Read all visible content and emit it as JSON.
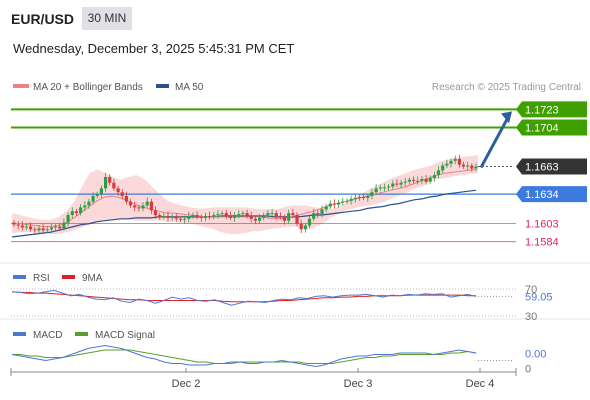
{
  "header": {
    "pair": "EUR/USD",
    "timeframe": "30 MIN",
    "datetime": "Wednesday, December 3, 2025 5:45:31 PM CET"
  },
  "colors": {
    "green": "#3fa000",
    "blue": "#3d7ae0",
    "red": "#e0245e",
    "bull": "#2e9e46",
    "bear": "#d63a3a",
    "band": "#f9c7c9",
    "ma20": "#f08080",
    "ma50": "#2c4f8f",
    "arrow": "#2f5e9e",
    "dark": "#333333"
  },
  "chart_data": [
    {
      "type": "line",
      "subtype": "candlestick",
      "legend": [
        {
          "name": "MA 20 + Bollinger Bands",
          "color": "#f08080"
        },
        {
          "name": "MA 50",
          "color": "#2c4f8f"
        }
      ],
      "source": "Research © 2025 Trading Central",
      "y_range": [
        1.157,
        1.1735
      ],
      "x_ticks": [
        "Dec 2",
        "Dec 3",
        "Dec 4"
      ],
      "levels": [
        {
          "value": 1.1723,
          "label": "1.1723",
          "color": "#3fa000",
          "kind": "resistance"
        },
        {
          "value": 1.1704,
          "label": "1.1704",
          "color": "#3fa000",
          "kind": "resistance"
        },
        {
          "value": 1.1663,
          "label": "1.1663",
          "color": "#333333",
          "kind": "last"
        },
        {
          "value": 1.1634,
          "label": "1.1634",
          "color": "#3d7ae0",
          "kind": "pivot"
        },
        {
          "value": 1.1603,
          "label": "1.1603",
          "color": "#e0245e",
          "kind": "support"
        },
        {
          "value": 1.1584,
          "label": "1.1584",
          "color": "#e0245e",
          "kind": "support"
        }
      ],
      "close_series": [
        1.1602,
        1.1601,
        1.1599,
        1.16,
        1.1597,
        1.1596,
        1.1598,
        1.1596,
        1.1597,
        1.1599,
        1.16,
        1.1598,
        1.1604,
        1.1612,
        1.1616,
        1.1614,
        1.162,
        1.1622,
        1.1626,
        1.1632,
        1.1634,
        1.164,
        1.1652,
        1.1646,
        1.164,
        1.1636,
        1.1632,
        1.1626,
        1.1622,
        1.162,
        1.1619,
        1.1622,
        1.1626,
        1.1617,
        1.1612,
        1.161,
        1.1611,
        1.1609,
        1.161,
        1.1608,
        1.1607,
        1.1608,
        1.1611,
        1.1612,
        1.161,
        1.1609,
        1.1611,
        1.161,
        1.1612,
        1.1613,
        1.1614,
        1.1611,
        1.1609,
        1.1612,
        1.1613,
        1.1614,
        1.1611,
        1.1608,
        1.1606,
        1.1609,
        1.1612,
        1.1614,
        1.1614,
        1.1611,
        1.161,
        1.1606,
        1.1614,
        1.1612,
        1.1603,
        1.1597,
        1.1601,
        1.1608,
        1.1614,
        1.1613,
        1.1618,
        1.1621,
        1.1624,
        1.1623,
        1.1625,
        1.1626,
        1.1627,
        1.1629,
        1.163,
        1.1631,
        1.163,
        1.1632,
        1.1636,
        1.164,
        1.1641,
        1.1641,
        1.1642,
        1.1645,
        1.1644,
        1.1646,
        1.1647,
        1.1649,
        1.1648,
        1.1648,
        1.165,
        1.1647,
        1.1651,
        1.1654,
        1.1659,
        1.1664,
        1.1666,
        1.1669,
        1.1671,
        1.1665,
        1.1663,
        1.1664,
        1.1661,
        1.1663
      ],
      "bb_upper": [
        1.1614,
        1.1612,
        1.161,
        1.1608,
        1.1607,
        1.1607,
        1.161,
        1.1616,
        1.1626,
        1.1642,
        1.1656,
        1.166,
        1.1656,
        1.1652,
        1.1649,
        1.1652,
        1.1654,
        1.165,
        1.1642,
        1.1634,
        1.1627,
        1.1624,
        1.1622,
        1.162,
        1.1619,
        1.1619,
        1.162,
        1.162,
        1.162,
        1.162,
        1.162,
        1.1619,
        1.1618,
        1.1618,
        1.1618,
        1.162,
        1.1622,
        1.1622,
        1.1622,
        1.162,
        1.1619,
        1.1618,
        1.162,
        1.1625,
        1.163,
        1.1634,
        1.1639,
        1.1643,
        1.1647,
        1.1651,
        1.1654,
        1.1657,
        1.166,
        1.1662,
        1.1664,
        1.1668,
        1.167,
        1.1672,
        1.1673,
        1.1674,
        1.1675
      ],
      "bb_lower": [
        1.1593,
        1.1594,
        1.1594,
        1.1594,
        1.1593,
        1.1592,
        1.1592,
        1.1594,
        1.1596,
        1.1599,
        1.1602,
        1.1605,
        1.1607,
        1.1607,
        1.1607,
        1.1607,
        1.1606,
        1.1606,
        1.1606,
        1.1606,
        1.1605,
        1.1605,
        1.1604,
        1.1603,
        1.1601,
        1.1599,
        1.1597,
        1.1594,
        1.1592,
        1.1592,
        1.1593,
        1.1595,
        1.1595,
        1.1597,
        1.1598,
        1.1599,
        1.16,
        1.1599,
        1.1597,
        1.1599,
        1.1603,
        1.1609,
        1.1613,
        1.1617,
        1.1619,
        1.1621,
        1.1622,
        1.1624,
        1.1626,
        1.163,
        1.1633,
        1.1636,
        1.164,
        1.1643,
        1.1648,
        1.165,
        1.1651,
        1.1653,
        1.1654,
        1.1655,
        1.1656
      ],
      "ma20": [
        1.1603,
        1.1603,
        1.1602,
        1.1601,
        1.16,
        1.16,
        1.1601,
        1.1604,
        1.1609,
        1.1615,
        1.1621,
        1.1627,
        1.1631,
        1.1632,
        1.163,
        1.1627,
        1.1623,
        1.162,
        1.1618,
        1.1616,
        1.1614,
        1.1614,
        1.1613,
        1.1612,
        1.1611,
        1.161,
        1.161,
        1.161,
        1.161,
        1.161,
        1.161,
        1.161,
        1.161,
        1.1609,
        1.1608,
        1.1608,
        1.161,
        1.1612,
        1.1614,
        1.1616,
        1.1619,
        1.1622,
        1.1624,
        1.1626,
        1.1628,
        1.163,
        1.1632,
        1.1634,
        1.1636,
        1.1638,
        1.164,
        1.1642,
        1.1645,
        1.1648,
        1.1651,
        1.1654,
        1.1656,
        1.1657,
        1.1658,
        1.1659,
        1.166
      ],
      "ma50": [
        1.1589,
        1.159,
        1.1591,
        1.1592,
        1.1593,
        1.1594,
        1.1596,
        1.1598,
        1.16,
        1.1602,
        1.1603,
        1.1605,
        1.1606,
        1.1607,
        1.1608,
        1.1608,
        1.1609,
        1.1609,
        1.1609,
        1.161,
        1.161,
        1.161,
        1.161,
        1.161,
        1.161,
        1.161,
        1.161,
        1.1611,
        1.1611,
        1.1611,
        1.1611,
        1.1611,
        1.1611,
        1.1611,
        1.161,
        1.161,
        1.161,
        1.161,
        1.1611,
        1.1612,
        1.1612,
        1.1613,
        1.1614,
        1.1615,
        1.1616,
        1.1617,
        1.1619,
        1.162,
        1.1621,
        1.1623,
        1.1624,
        1.1626,
        1.1628,
        1.1629,
        1.1631,
        1.1632,
        1.1634,
        1.1635,
        1.1636,
        1.1637,
        1.1638
      ],
      "projection": {
        "from": 1.1663,
        "to": 1.1723
      }
    },
    {
      "type": "line",
      "title": "RSI",
      "legend": [
        {
          "name": "RSI",
          "color": "#4e76d6"
        },
        {
          "name": "9MA",
          "color": "#e02020"
        }
      ],
      "y_range": [
        27,
        73
      ],
      "reference_levels": [
        {
          "value": 70,
          "label": "70"
        },
        {
          "value": 30,
          "label": "30"
        }
      ],
      "last_value": {
        "value": 59.05,
        "label": "59.05"
      },
      "rsi": [
        66,
        65,
        63,
        64,
        66,
        68,
        64,
        60,
        62,
        58,
        55,
        54,
        57,
        52,
        50,
        55,
        53,
        49,
        53,
        58,
        55,
        57,
        53,
        52,
        54,
        50,
        46,
        49,
        52,
        51,
        50,
        53,
        55,
        54,
        57,
        56,
        59,
        60,
        58,
        60,
        61,
        61,
        62,
        60,
        58,
        61,
        60,
        62,
        61,
        63,
        62,
        63,
        58,
        60,
        62,
        59
      ],
      "ma9": [
        66,
        65,
        65,
        64,
        64,
        63,
        62,
        61,
        60,
        59,
        58,
        57,
        56,
        55,
        54,
        54,
        53,
        53,
        53,
        53,
        53,
        53,
        53,
        53,
        53,
        52,
        51,
        51,
        51,
        51,
        51,
        52,
        53,
        53,
        54,
        55,
        56,
        57,
        57,
        58,
        58,
        59,
        59,
        60,
        60,
        60,
        60,
        61,
        61,
        61,
        61,
        61,
        61,
        61,
        60,
        60
      ]
    },
    {
      "type": "line",
      "title": "MACD",
      "legend": [
        {
          "name": "MACD",
          "color": "#4e76d6"
        },
        {
          "name": "MACD Signal",
          "color": "#58a02a"
        }
      ],
      "y_range": [
        -0.0005,
        0.0011
      ],
      "reference_levels": [
        {
          "value": 0,
          "label": "0"
        }
      ],
      "last_value": {
        "value": 0.0,
        "label": "0.00"
      },
      "macd": [
        0.0004,
        0.0003,
        0.0002,
        0.0001,
        0.0,
        0.0001,
        0.0002,
        0.0004,
        0.0006,
        0.0008,
        0.0009,
        0.001,
        0.0009,
        0.0008,
        0.0006,
        0.0004,
        0.0002,
        0.0001,
        -0.0001,
        -0.0002,
        -0.0002,
        -0.0003,
        -0.0003,
        -0.0003,
        -0.0002,
        -0.0002,
        -0.0001,
        -0.0001,
        -0.0002,
        -0.0002,
        -0.0001,
        -0.0001,
        0.0,
        -0.0001,
        -0.0002,
        -0.0003,
        -0.0004,
        -0.0003,
        -0.0001,
        0.0001,
        0.0002,
        0.0003,
        0.0003,
        0.0004,
        0.0004,
        0.0004,
        0.0005,
        0.0005,
        0.0005,
        0.0005,
        0.0004,
        0.0005,
        0.0006,
        0.0007,
        0.0006,
        0.0005
      ],
      "signal": [
        0.0004,
        0.0004,
        0.0003,
        0.0003,
        0.0002,
        0.0002,
        0.0002,
        0.0003,
        0.0004,
        0.0005,
        0.0006,
        0.0007,
        0.0007,
        0.0007,
        0.0007,
        0.0006,
        0.0005,
        0.0004,
        0.0003,
        0.0002,
        0.0001,
        0.0,
        -0.0001,
        -0.0001,
        -0.0002,
        -0.0002,
        -0.0002,
        -0.0001,
        -0.0001,
        -0.0001,
        -0.0001,
        -0.0001,
        -0.0001,
        -0.0001,
        -0.0001,
        -0.0002,
        -0.0002,
        -0.0002,
        -0.0002,
        -0.0001,
        0.0,
        0.0001,
        0.0002,
        0.0002,
        0.0003,
        0.0003,
        0.0004,
        0.0004,
        0.0004,
        0.0004,
        0.0004,
        0.0004,
        0.0005,
        0.0005,
        0.0006,
        0.0005
      ]
    }
  ]
}
